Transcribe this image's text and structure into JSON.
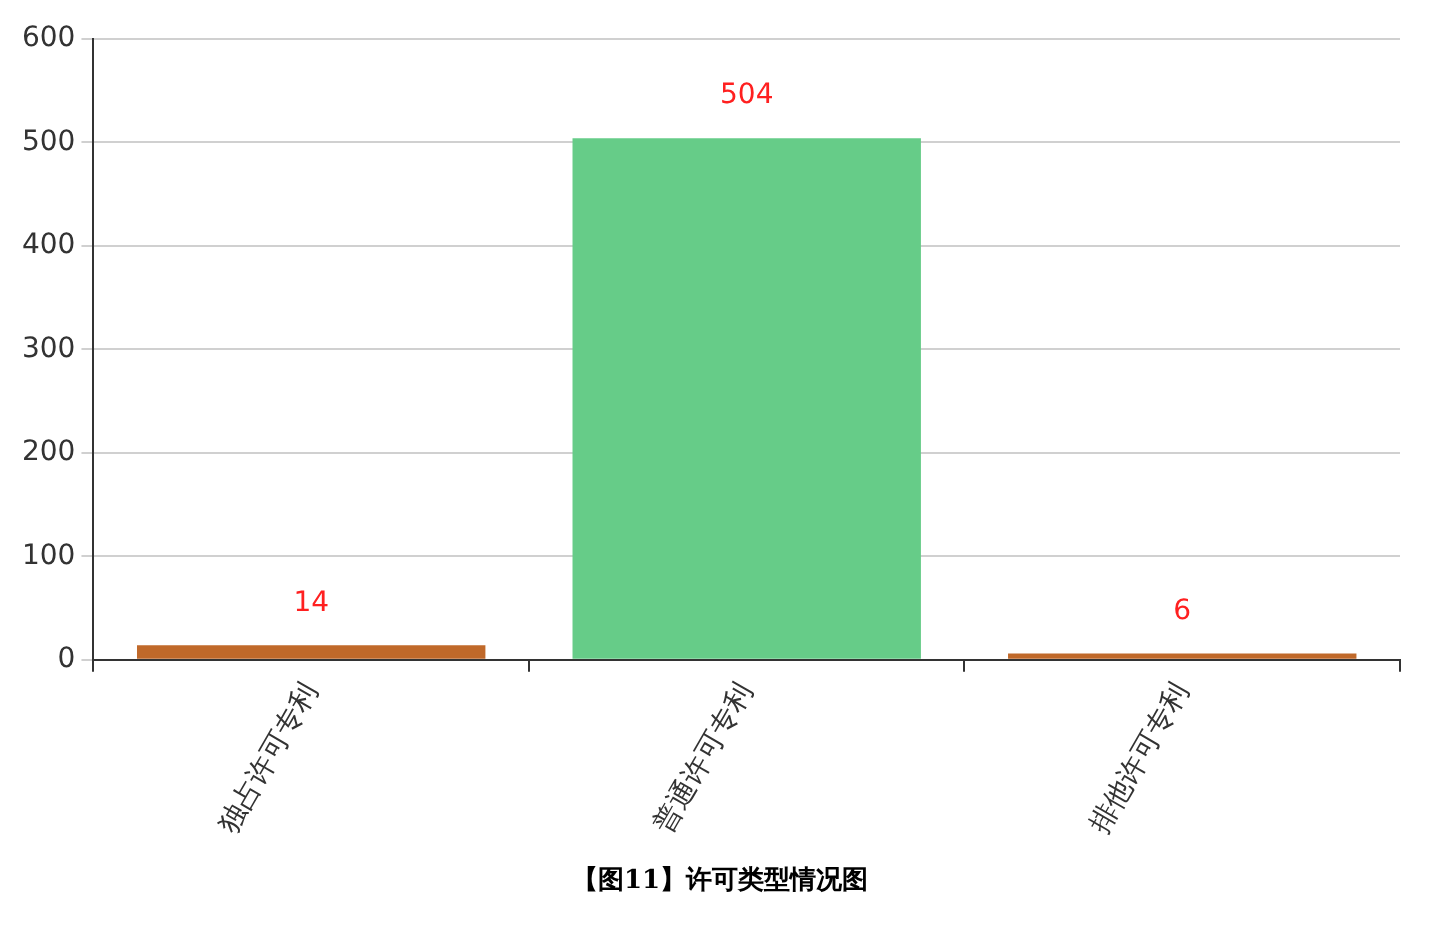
{
  "chart_data": {
    "type": "bar",
    "categories": [
      "独占许可专利",
      "普通许可专利",
      "排他许可专利"
    ],
    "values": [
      14,
      504,
      6
    ],
    "colors": [
      "#c0692a",
      "#66cc88",
      "#c0692a"
    ],
    "ylim": [
      0,
      600
    ],
    "yticks": [
      0,
      100,
      200,
      300,
      400,
      500,
      600
    ],
    "grid": "y",
    "data_labels": true,
    "annotations": [
      "【图11】许可类型情况图"
    ]
  }
}
